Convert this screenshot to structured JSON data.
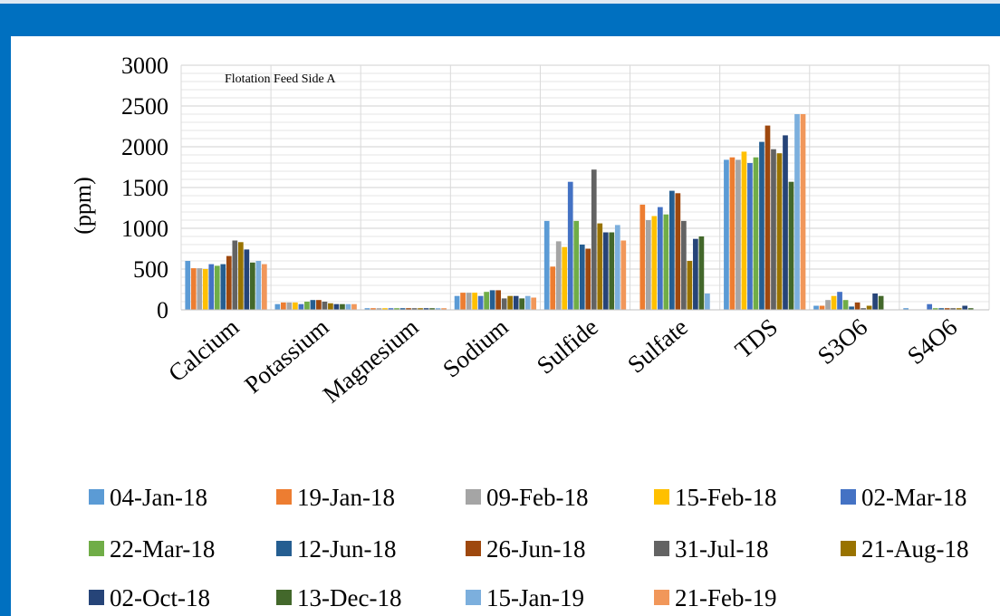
{
  "chart_data": {
    "type": "bar",
    "title": "Flotation Feed Side A",
    "xlabel": "",
    "ylabel": "(ppm)",
    "ylim": [
      0,
      3000
    ],
    "yticks": [
      0,
      500,
      1000,
      1500,
      2000,
      2500,
      3000
    ],
    "grid": true,
    "legend_position": "bottom",
    "categories": [
      "Calcium",
      "Potassium",
      "Magnesium",
      "Sodium",
      "Sulfide",
      "Sulfate",
      "TDS",
      "S3O6",
      "S4O6"
    ],
    "series": [
      {
        "name": "04-Jan-18",
        "color": "#5b9bd5",
        "values": [
          600,
          70,
          20,
          170,
          1090,
          0,
          1840,
          50,
          20
        ]
      },
      {
        "name": "19-Jan-18",
        "color": "#ed7d31",
        "values": [
          510,
          90,
          20,
          210,
          530,
          1290,
          1870,
          50,
          0
        ]
      },
      {
        "name": "09-Feb-18",
        "color": "#a5a5a5",
        "values": [
          510,
          90,
          20,
          210,
          840,
          1100,
          1840,
          120,
          0
        ]
      },
      {
        "name": "15-Feb-18",
        "color": "#ffc000",
        "values": [
          500,
          90,
          20,
          210,
          770,
          1150,
          1940,
          170,
          0
        ]
      },
      {
        "name": "02-Mar-18",
        "color": "#4472c4",
        "values": [
          560,
          70,
          20,
          170,
          1570,
          1260,
          1800,
          220,
          70
        ]
      },
      {
        "name": "22-Mar-18",
        "color": "#70ad47",
        "values": [
          540,
          100,
          20,
          220,
          1090,
          1170,
          1870,
          120,
          20
        ]
      },
      {
        "name": "12-Jun-18",
        "color": "#255e91",
        "values": [
          560,
          120,
          20,
          240,
          800,
          1460,
          2060,
          40,
          20
        ]
      },
      {
        "name": "26-Jun-18",
        "color": "#9e480e",
        "values": [
          660,
          120,
          20,
          240,
          750,
          1430,
          2260,
          90,
          20
        ]
      },
      {
        "name": "31-Jul-18",
        "color": "#636363",
        "values": [
          850,
          100,
          20,
          140,
          1720,
          1090,
          1970,
          20,
          20
        ]
      },
      {
        "name": "21-Aug-18",
        "color": "#997300",
        "values": [
          830,
          80,
          20,
          170,
          1060,
          600,
          1920,
          50,
          20
        ]
      },
      {
        "name": "02-Oct-18",
        "color": "#264478",
        "values": [
          740,
          70,
          20,
          170,
          950,
          870,
          2140,
          200,
          50
        ]
      },
      {
        "name": "13-Dec-18",
        "color": "#43682b",
        "values": [
          580,
          70,
          20,
          140,
          950,
          900,
          1570,
          170,
          20
        ]
      },
      {
        "name": "15-Jan-19",
        "color": "#7cafdd",
        "values": [
          600,
          70,
          20,
          170,
          1040,
          200,
          2400,
          0,
          0
        ]
      },
      {
        "name": "21-Feb-19",
        "color": "#f1975a",
        "values": [
          560,
          70,
          20,
          150,
          850,
          0,
          2400,
          0,
          0
        ]
      }
    ]
  }
}
